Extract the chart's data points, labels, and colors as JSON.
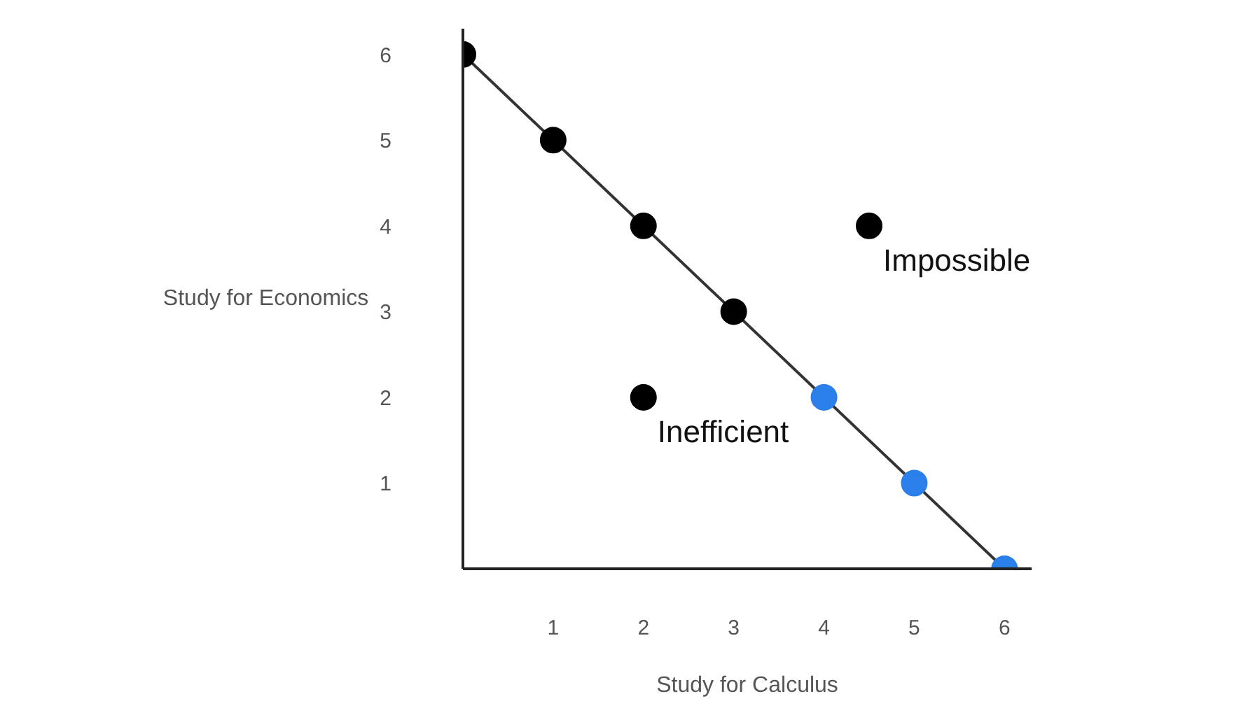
{
  "chart_data": {
    "type": "scatter",
    "xlabel": "Study for Calculus",
    "ylabel": "Study for Economics",
    "xlim": [
      0,
      6.3
    ],
    "ylim": [
      0,
      6.3
    ],
    "xticks": [
      1,
      2,
      3,
      4,
      5,
      6
    ],
    "yticks": [
      1,
      2,
      3,
      4,
      5,
      6
    ],
    "grid": false,
    "series": [
      {
        "type": "line",
        "x": [
          0,
          6
        ],
        "values": [
          6,
          0
        ],
        "color": "#333333"
      },
      {
        "x": [
          0,
          1,
          2,
          3,
          4,
          5,
          6
        ],
        "values": [
          6,
          5,
          4,
          3,
          2,
          1,
          0
        ],
        "marker": "circle",
        "colors": [
          "#000000",
          "#000000",
          "#000000",
          "#000000",
          "#2b7fe8",
          "#2b7fe8",
          "#2b7fe8"
        ]
      },
      {
        "x": [
          2,
          4.5
        ],
        "values": [
          2,
          4
        ],
        "marker": "circle",
        "color": "#000000"
      }
    ],
    "annotations": [
      {
        "text": "Impossible",
        "x": 4.5,
        "y": 4
      },
      {
        "text": "Inefficient",
        "x": 2,
        "y": 2
      }
    ]
  }
}
